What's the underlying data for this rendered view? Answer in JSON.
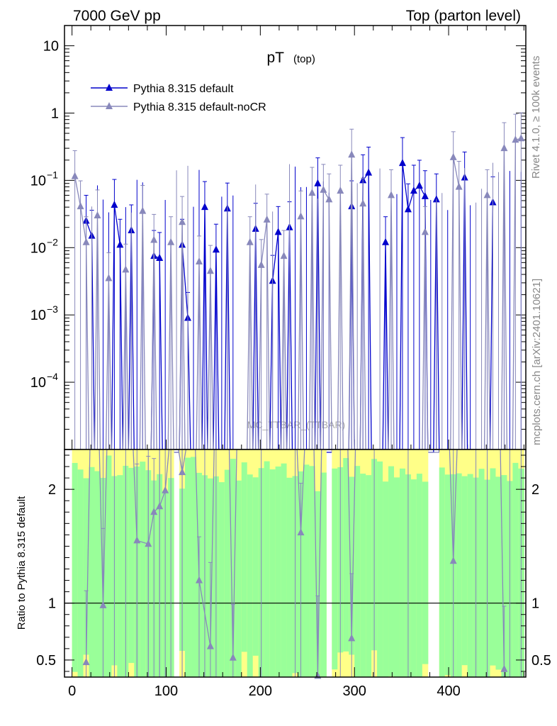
{
  "header": {
    "left": "7000 GeV pp",
    "right": "Top (parton level)"
  },
  "side": {
    "rivet": "Rivet 4.1.0, ≥ 100k events",
    "mcplots": "mcplots.cern.ch [arXiv:2401.10621]"
  },
  "watermark": "MC_TTBAR_(TTBAR)",
  "chart_data": [
    {
      "type": "line",
      "title": "pT",
      "title_sub": "(top)",
      "yscale": "log",
      "ylim": [
        1e-05,
        20
      ],
      "xlim": [
        -8,
        482
      ],
      "yticks": [
        {
          "v": 10,
          "label": "10",
          "base": "",
          "exp": ""
        },
        {
          "v": 1,
          "label": "1",
          "base": "",
          "exp": ""
        },
        {
          "v": 0.1,
          "label": "",
          "base": "10",
          "exp": "−1"
        },
        {
          "v": 0.01,
          "label": "",
          "base": "10",
          "exp": "−2"
        },
        {
          "v": 0.001,
          "label": "",
          "base": "10",
          "exp": "−3"
        },
        {
          "v": 0.0001,
          "label": "",
          "base": "10",
          "exp": "−4"
        }
      ],
      "legend_position": "top-left",
      "series": [
        {
          "name": "Pythia 8.315 default",
          "color": "#0000cc",
          "points": [
            {
              "x": 15,
              "y": 0.025
            },
            {
              "x": 21,
              "y": 0.015
            },
            {
              "x": 45,
              "y": 0.043
            },
            {
              "x": 51,
              "y": 0.011
            },
            {
              "x": 63,
              "y": 0.018
            },
            {
              "x": 87,
              "y": 0.0075
            },
            {
              "x": 93,
              "y": 0.007
            },
            {
              "x": 117,
              "y": 0.011
            },
            {
              "x": 123,
              "y": 0.0009
            },
            {
              "x": 141,
              "y": 0.04
            },
            {
              "x": 153,
              "y": 0.0093
            },
            {
              "x": 165,
              "y": 0.038
            },
            {
              "x": 195,
              "y": 0.019
            },
            {
              "x": 213,
              "y": 0.0032
            },
            {
              "x": 219,
              "y": 0.017
            },
            {
              "x": 231,
              "y": 0.02
            },
            {
              "x": 261,
              "y": 0.09
            },
            {
              "x": 297,
              "y": 0.041
            },
            {
              "x": 309,
              "y": 0.1
            },
            {
              "x": 315,
              "y": 0.13
            },
            {
              "x": 333,
              "y": 0.012
            },
            {
              "x": 351,
              "y": 0.18
            },
            {
              "x": 357,
              "y": 0.037
            },
            {
              "x": 363,
              "y": 0.07
            },
            {
              "x": 369,
              "y": 0.083
            },
            {
              "x": 375,
              "y": 0.058
            },
            {
              "x": 387,
              "y": 0.052
            },
            {
              "x": 417,
              "y": 0.11
            },
            {
              "x": 447,
              "y": 0.047
            }
          ]
        },
        {
          "name": "Pythia 8.315 default-noCR",
          "color": "#8888bb",
          "points": [
            {
              "x": 3,
              "y": 0.115
            },
            {
              "x": 9,
              "y": 0.041
            },
            {
              "x": 15,
              "y": 0.012
            },
            {
              "x": 27,
              "y": 0.03
            },
            {
              "x": 39,
              "y": 0.0035
            },
            {
              "x": 57,
              "y": 0.0047
            },
            {
              "x": 75,
              "y": 0.035
            },
            {
              "x": 87,
              "y": 0.013
            },
            {
              "x": 105,
              "y": 0.012
            },
            {
              "x": 117,
              "y": 0.024
            },
            {
              "x": 135,
              "y": 0.0062
            },
            {
              "x": 147,
              "y": 0.0045
            },
            {
              "x": 189,
              "y": 0.012
            },
            {
              "x": 201,
              "y": 0.0055
            },
            {
              "x": 207,
              "y": 0.026
            },
            {
              "x": 225,
              "y": 0.0075
            },
            {
              "x": 243,
              "y": 0.029
            },
            {
              "x": 255,
              "y": 0.065
            },
            {
              "x": 267,
              "y": 0.072
            },
            {
              "x": 273,
              "y": 0.052
            },
            {
              "x": 285,
              "y": 0.07
            },
            {
              "x": 297,
              "y": 0.24
            },
            {
              "x": 309,
              "y": 0.045
            },
            {
              "x": 339,
              "y": 0.06
            },
            {
              "x": 375,
              "y": 0.017
            },
            {
              "x": 405,
              "y": 0.22
            },
            {
              "x": 411,
              "y": 0.08
            },
            {
              "x": 441,
              "y": 0.06
            },
            {
              "x": 459,
              "y": 0.3
            },
            {
              "x": 471,
              "y": 0.4
            },
            {
              "x": 477,
              "y": 0.42
            }
          ]
        }
      ]
    },
    {
      "type": "line",
      "ylabel": "Ratio to Pythia 8.315 default",
      "xlim": [
        -8,
        482
      ],
      "ylim": [
        0.35,
        2.35
      ],
      "reference_line": 1,
      "xticks": [
        0,
        100,
        200,
        300,
        400
      ],
      "yticks": [
        {
          "v": 0.5,
          "label": "0.5"
        },
        {
          "v": 1,
          "label": "1"
        },
        {
          "v": 2,
          "label": "2"
        }
      ],
      "band_colors": {
        "inner": "#99ff99",
        "outer": "#ffff88"
      },
      "ratio_series": [
        {
          "name": "Pythia 8.315 default-noCR / Pythia 8.315 default",
          "color": "#8888bb",
          "points": [
            {
              "x": 15,
              "y": 0.48
            },
            {
              "x": 33,
              "y": 0.98
            },
            {
              "x": 69,
              "y": 1.55
            },
            {
              "x": 81,
              "y": 1.52
            },
            {
              "x": 87,
              "y": 1.8
            },
            {
              "x": 93,
              "y": 1.85
            },
            {
              "x": 99,
              "y": 1.99
            },
            {
              "x": 117,
              "y": 2.15
            },
            {
              "x": 135,
              "y": 1.2
            },
            {
              "x": 147,
              "y": 0.62
            },
            {
              "x": 171,
              "y": 0.52
            },
            {
              "x": 243,
              "y": 1.62
            },
            {
              "x": 261,
              "y": 0.36
            },
            {
              "x": 297,
              "y": 0.69
            },
            {
              "x": 405,
              "y": 1.37
            },
            {
              "x": 459,
              "y": 0.42
            }
          ]
        }
      ]
    }
  ]
}
